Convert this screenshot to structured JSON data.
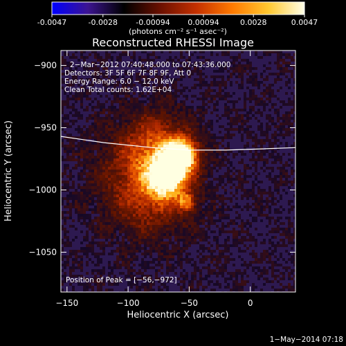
{
  "colorbar": {
    "tick_labels": [
      "-0.0047",
      "-0.0028",
      "-0.00094",
      "0.00094",
      "0.0028",
      "0.0047"
    ],
    "tick_values": [
      -0.0047,
      -0.0028,
      -0.00094,
      0.00094,
      0.0028,
      0.0047
    ],
    "range": [
      -0.0047,
      0.0047
    ],
    "units_label": "(photons cm⁻² s⁻¹ asec⁻²)",
    "colors": [
      "#0000ff",
      "#3c1490",
      "#000000",
      "#6a1000",
      "#c43000",
      "#ff7a00",
      "#ffc830",
      "#ffffe8"
    ]
  },
  "chart_data": {
    "type": "heatmap",
    "title": "Reconstructed RHESSI Image",
    "xlabel": "Heliocentric X (arcsec)",
    "ylabel": "Heliocentric Y (arcsec)",
    "xlim": [
      -155,
      37
    ],
    "ylim": [
      -1082,
      -888
    ],
    "xticks": [
      -150,
      -100,
      -50,
      0
    ],
    "xtick_labels": [
      "−150",
      "−100",
      "−50",
      "0"
    ],
    "yticks": [
      -900,
      -950,
      -1000,
      -1050
    ],
    "ytick_labels": [
      "−900",
      "−950",
      "−1000",
      "−1050"
    ],
    "annotations": [
      "2−Mar−2012 07:40:48.000 to 07:43:36.000",
      "Detectors: 3F 5F 6F 7F 8F 9F, Att 0",
      "Energy Range: 6.0 − 12.0 keV",
      "Clean     Total counts: 1.62E+04"
    ],
    "peak_label": "Position of Peak = [−56,−972]",
    "peak": {
      "x": -56,
      "y": -972
    },
    "sources": [
      {
        "x": -56,
        "y": -972,
        "amp": 1.0,
        "sigma": 9
      },
      {
        "x": -67,
        "y": -990,
        "amp": 0.7,
        "sigma": 11
      },
      {
        "x": -52,
        "y": -1010,
        "amp": 0.55,
        "sigma": 5
      },
      {
        "x": -75,
        "y": -965,
        "amp": 0.45,
        "sigma": 18
      },
      {
        "x": -80,
        "y": -1005,
        "amp": 0.35,
        "sigma": 22
      },
      {
        "x": -90,
        "y": -985,
        "amp": 0.3,
        "sigma": 28
      }
    ],
    "limb": [
      [
        -155,
        -957
      ],
      [
        -120,
        -962
      ],
      [
        -80,
        -966
      ],
      [
        -50,
        -968
      ],
      [
        -20,
        -968
      ],
      [
        10,
        -967
      ],
      [
        37,
        -966
      ]
    ]
  },
  "footer": {
    "timestamp": "1−May−2014 07:18"
  }
}
